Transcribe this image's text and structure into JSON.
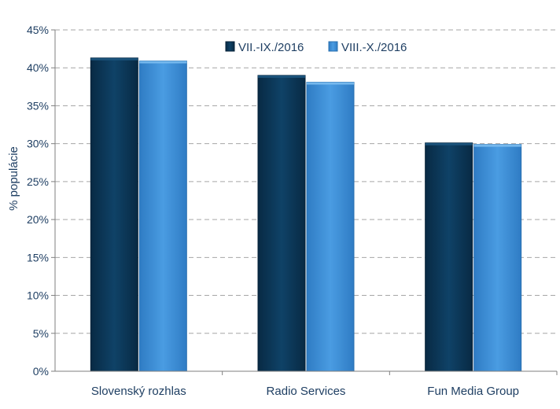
{
  "chart_data": {
    "type": "bar",
    "categories": [
      "Slovenský rozhlas",
      "Radio Services",
      "Fun Media Group"
    ],
    "series": [
      {
        "name": "VII.-IX./2016",
        "values": [
          41.3,
          39.0,
          30.1
        ],
        "color": "#0d3b5e"
      },
      {
        "name": "VIII.-X./2016",
        "values": [
          40.9,
          38.1,
          29.9
        ],
        "color": "#3b8fd8"
      }
    ],
    "ylabel": "% populácie",
    "xlabel": "",
    "ylim": [
      0,
      45
    ],
    "yticks": [
      0,
      5,
      10,
      15,
      20,
      25,
      30,
      35,
      40,
      45
    ],
    "ytick_labels": [
      "0%",
      "5%",
      "10%",
      "15%",
      "20%",
      "25%",
      "30%",
      "35%",
      "40%",
      "45%"
    ],
    "grid": true,
    "legend_position": "top-center"
  }
}
